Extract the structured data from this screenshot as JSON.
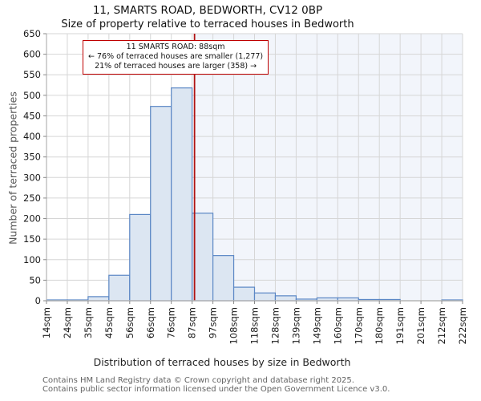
{
  "header": {
    "title": "11, SMARTS ROAD, BEDWORTH, CV12 0BP",
    "subtitle": "Size of property relative to terraced houses in Bedworth"
  },
  "annotation": {
    "line1": "11 SMARTS ROAD: 88sqm",
    "line2": "← 76% of terraced houses are smaller (1,277)",
    "line3": "21% of terraced houses are larger (358) →"
  },
  "footer": {
    "line1": "Contains HM Land Registry data © Crown copyright and database right 2025.",
    "line2": "Contains public sector information licensed under the Open Government Licence v3.0."
  },
  "chart_data": {
    "type": "bar",
    "title": "11, SMARTS ROAD, BEDWORTH, CV12 0BP",
    "subtitle": "Size of property relative to terraced houses in Bedworth",
    "xlabel": "Distribution of terraced houses by size in Bedworth",
    "ylabel": "Number of terraced properties",
    "categories": [
      "14sqm",
      "24sqm",
      "35sqm",
      "45sqm",
      "56sqm",
      "66sqm",
      "76sqm",
      "87sqm",
      "97sqm",
      "108sqm",
      "118sqm",
      "128sqm",
      "139sqm",
      "149sqm",
      "160sqm",
      "170sqm",
      "180sqm",
      "191sqm",
      "201sqm",
      "212sqm",
      "222sqm"
    ],
    "values": [
      2,
      2,
      10,
      62,
      210,
      473,
      518,
      213,
      110,
      33,
      19,
      12,
      4,
      7,
      7,
      3,
      3,
      0,
      0,
      2
    ],
    "ylim": [
      0,
      650
    ],
    "yticks": [
      0,
      50,
      100,
      150,
      200,
      250,
      300,
      350,
      400,
      450,
      500,
      550,
      600,
      650
    ],
    "grid": "on",
    "legend": "none",
    "marker": {
      "label": "11 SMARTS ROAD",
      "value_sqm": 88,
      "axis_min_sqm": 14,
      "axis_max_sqm": 222,
      "smaller_pct": 76,
      "smaller_count": "1,277",
      "larger_pct": 21,
      "larger_count": "358"
    },
    "colors": {
      "bar_fill": "#dce6f2",
      "bar_stroke": "#5b87c5",
      "shade_fill": "#f2f5fb",
      "grid": "#d6d6d6",
      "axis": "#b5b5b5",
      "tick": "#8a8a8a",
      "tick_label": "#1a1a1a",
      "marker_line": "#b01212",
      "annotation_border": "#bf0000"
    }
  }
}
